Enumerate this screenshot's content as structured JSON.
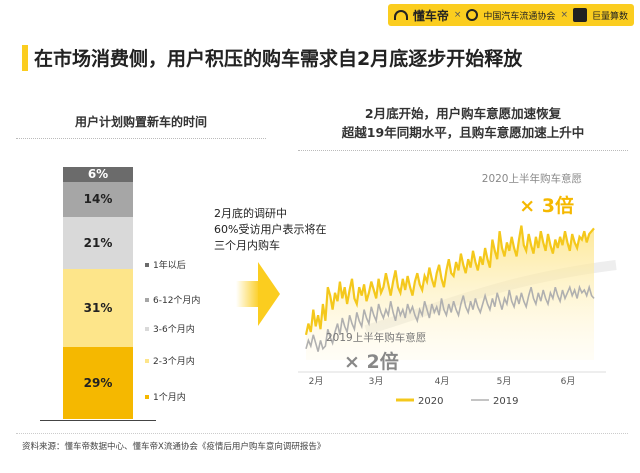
{
  "header": {
    "logos": [
      "懂车帝",
      "中国汽车流通协会",
      "巨量算数"
    ],
    "separator": "×"
  },
  "title": "在市场消费侧，用户积压的购车需求自2月底逐步开始释放",
  "colors": {
    "accent": "#fbcd1f",
    "seg_lt1m": "#f5b800",
    "seg_2_3m": "#fde58a",
    "seg_3_6m": "#d9d9d9",
    "seg_6_12m": "#a6a6a6",
    "seg_gt1y": "#6b6b6b",
    "line_2020": "#f4c81c",
    "line_2019": "#b0b0b0"
  },
  "left_chart": {
    "heading": "用户计划购置新车的时间"
  },
  "right_chart": {
    "heading_line1": "2月底开始，用户购车意愿加速恢复",
    "heading_line2": "超越19年同期水平，且购车意愿加速上升中"
  },
  "note": {
    "line1": "2月底的调研中",
    "line2": "60%受访用户表示将在",
    "line3": "三个月内购车"
  },
  "chart_data": [
    {
      "type": "bar",
      "stacked": true,
      "title": "用户计划购置新车的时间",
      "unit": "%",
      "series": [
        {
          "name": "1个月内",
          "value": 29,
          "label": "29%"
        },
        {
          "name": "2-3个月内",
          "value": 31,
          "label": "31%"
        },
        {
          "name": "3-6个月内",
          "value": 21,
          "label": "21%"
        },
        {
          "name": "6-12个月内",
          "value": 14,
          "label": "14%"
        },
        {
          "name": "1年以后",
          "value": 6,
          "label": "6%"
        }
      ],
      "legend_placement": "right"
    },
    {
      "type": "line",
      "x_ticks": [
        "2月",
        "3月",
        "4月",
        "5月",
        "6月"
      ],
      "x": [
        1,
        2,
        3,
        4,
        5,
        6,
        7,
        8,
        9,
        10,
        11,
        12,
        13,
        14,
        15,
        16,
        17,
        18,
        19,
        20,
        21,
        22,
        23,
        24,
        25,
        26,
        27,
        28,
        29,
        30,
        31,
        32,
        33,
        34,
        35,
        36,
        37,
        38,
        39,
        40,
        41,
        42,
        43,
        44,
        45,
        46,
        47,
        48,
        49,
        50,
        51,
        52,
        53,
        54,
        55,
        56,
        57,
        58,
        59,
        60,
        61,
        62,
        63,
        64,
        65,
        66,
        67,
        68,
        69,
        70,
        71,
        72,
        73,
        74,
        75,
        76,
        77,
        78,
        79,
        80,
        81,
        82,
        83,
        84,
        85,
        86,
        87,
        88,
        89,
        90,
        91,
        92,
        93,
        94,
        95,
        96,
        97,
        98,
        99,
        100,
        101,
        102,
        103,
        104,
        105,
        106,
        107,
        108,
        109,
        110,
        111,
        112,
        113,
        114,
        115,
        116,
        117,
        118,
        119,
        120
      ],
      "series": [
        {
          "name": "2020",
          "annotation": "2020上半年购车意愿",
          "multiplier": "× 3倍",
          "values": [
            1.9,
            2.3,
            2.0,
            2.8,
            2.2,
            2.6,
            2.1,
            3.0,
            2.4,
            3.6,
            3.3,
            2.8,
            3.4,
            3.1,
            3.8,
            3.2,
            3.6,
            3.0,
            3.5,
            3.9,
            3.2,
            3.0,
            3.6,
            3.3,
            3.7,
            3.1,
            3.4,
            3.8,
            3.5,
            3.2,
            3.9,
            3.4,
            3.6,
            4.1,
            3.7,
            3.3,
            3.8,
            4.2,
            3.6,
            3.4,
            3.9,
            3.5,
            4.0,
            3.6,
            3.3,
            3.8,
            4.1,
            3.7,
            3.5,
            4.0,
            3.8,
            4.3,
            3.9,
            3.6,
            4.1,
            4.4,
            3.9,
            3.6,
            4.2,
            4.6,
            4.1,
            4.0,
            4.5,
            4.2,
            4.8,
            4.4,
            4.1,
            4.6,
            4.3,
            4.9,
            4.5,
            4.2,
            4.7,
            4.4,
            5.0,
            4.6,
            4.3,
            5.3,
            4.9,
            4.6,
            5.6,
            5.0,
            4.7,
            5.2,
            4.9,
            5.4,
            5.0,
            4.7,
            5.3,
            5.8,
            5.1,
            4.9,
            5.5,
            5.1,
            4.8,
            5.4,
            5.0,
            5.6,
            5.2,
            4.9,
            5.5,
            5.1,
            4.8,
            5.3,
            5.0,
            5.4,
            5.1,
            5.6,
            5.2,
            4.9,
            5.5,
            5.2,
            5.0,
            5.4,
            5.3,
            5.6,
            5.2,
            5.5,
            5.6,
            5.7
          ]
        },
        {
          "name": "2019",
          "annotation": "2019上半年购车意愿",
          "multiplier": "× 2倍",
          "values": [
            1.4,
            1.7,
            1.5,
            1.9,
            1.6,
            1.3,
            1.7,
            1.4,
            1.5,
            2.1,
            1.8,
            1.6,
            2.0,
            2.3,
            1.9,
            2.5,
            2.2,
            2.0,
            2.6,
            2.3,
            2.1,
            2.7,
            2.4,
            2.2,
            2.8,
            2.5,
            2.3,
            2.9,
            2.6,
            2.4,
            3.0,
            2.7,
            2.5,
            2.8,
            2.6,
            3.1,
            2.7,
            2.4,
            2.9,
            2.6,
            2.8,
            2.5,
            3.0,
            2.7,
            2.9,
            2.6,
            2.4,
            2.8,
            2.6,
            3.1,
            2.8,
            2.5,
            3.0,
            2.7,
            2.9,
            2.6,
            3.2,
            2.8,
            2.6,
            3.0,
            2.7,
            3.1,
            2.8,
            2.6,
            3.0,
            3.3,
            2.9,
            2.7,
            3.1,
            2.8,
            3.2,
            2.9,
            2.7,
            3.0,
            3.3,
            3.0,
            2.8,
            3.2,
            2.9,
            3.4,
            3.1,
            2.8,
            3.2,
            3.0,
            3.5,
            3.1,
            2.9,
            3.3,
            3.0,
            3.4,
            3.1,
            2.9,
            3.3,
            3.6,
            3.2,
            3.0,
            3.4,
            3.1,
            3.5,
            3.2,
            3.0,
            3.4,
            3.2,
            3.6,
            3.3,
            3.1,
            3.5,
            3.2,
            3.4,
            3.6,
            3.3,
            3.5,
            3.2,
            3.6,
            3.4,
            3.5,
            3.3,
            3.6,
            3.3,
            3.2
          ]
        }
      ],
      "legend": [
        "2020",
        "2019"
      ],
      "legend_placement": "bottom-right",
      "grid": false
    }
  ],
  "footnote": "资料来源：懂车帝数据中心、懂车帝X流通协会《疫情后用户购车意向调研报告》"
}
